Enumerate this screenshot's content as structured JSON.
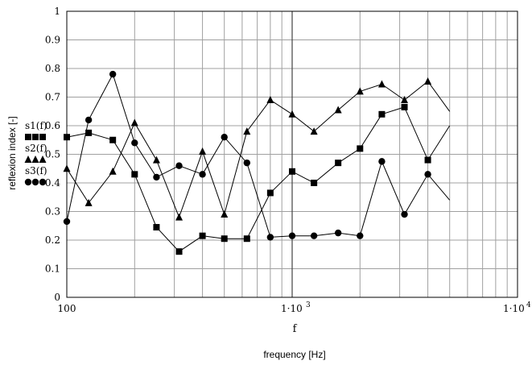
{
  "chart_data": {
    "type": "line",
    "xscale": "log",
    "xlim": [
      100,
      10000
    ],
    "ylim": [
      0,
      1
    ],
    "grid": true,
    "legend_placement": "left",
    "xvar_label": "f",
    "xlabel": "frequency [Hz]",
    "ylabel": "reflexion index [-]",
    "yticks": [
      "0",
      "0.1",
      "0.2",
      "0.3",
      "0.4",
      "0.5",
      "0.6",
      "0.7",
      "0.8",
      "0.9",
      "1"
    ],
    "xticks": [
      {
        "text": "100",
        "value": 100
      },
      {
        "base": "1·10",
        "exp": "3",
        "value": 1000
      },
      {
        "base": "1·10",
        "exp": "4",
        "value": 10000
      }
    ],
    "x": [
      100,
      125,
      160,
      200,
      250,
      315,
      400,
      500,
      630,
      800,
      1000,
      1250,
      1600,
      2000,
      2500,
      3150,
      4000,
      5000
    ],
    "series": [
      {
        "name": "s1(f)",
        "marker": "square",
        "legend_glyph": "■■■",
        "values": [
          0.56,
          0.575,
          0.55,
          0.43,
          0.245,
          0.16,
          0.215,
          0.205,
          0.205,
          0.365,
          0.44,
          0.4,
          0.47,
          0.52,
          0.64,
          0.665,
          0.48,
          0.6
        ]
      },
      {
        "name": "s2(f)",
        "marker": "triangle",
        "legend_glyph": "▲▲▲",
        "values": [
          0.45,
          0.33,
          0.44,
          0.61,
          0.48,
          0.28,
          0.51,
          0.29,
          0.58,
          0.69,
          0.64,
          0.58,
          0.655,
          0.72,
          0.745,
          0.69,
          0.755,
          0.65
        ]
      },
      {
        "name": "s3(f)",
        "marker": "circle",
        "legend_glyph": "●●●",
        "values": [
          0.265,
          0.62,
          0.78,
          0.54,
          0.42,
          0.46,
          0.43,
          0.56,
          0.47,
          0.21,
          0.215,
          0.215,
          0.225,
          0.215,
          0.475,
          0.29,
          0.43,
          0.34
        ]
      }
    ],
    "line_color": "#000000",
    "grid_color": "#a0a0a0"
  }
}
